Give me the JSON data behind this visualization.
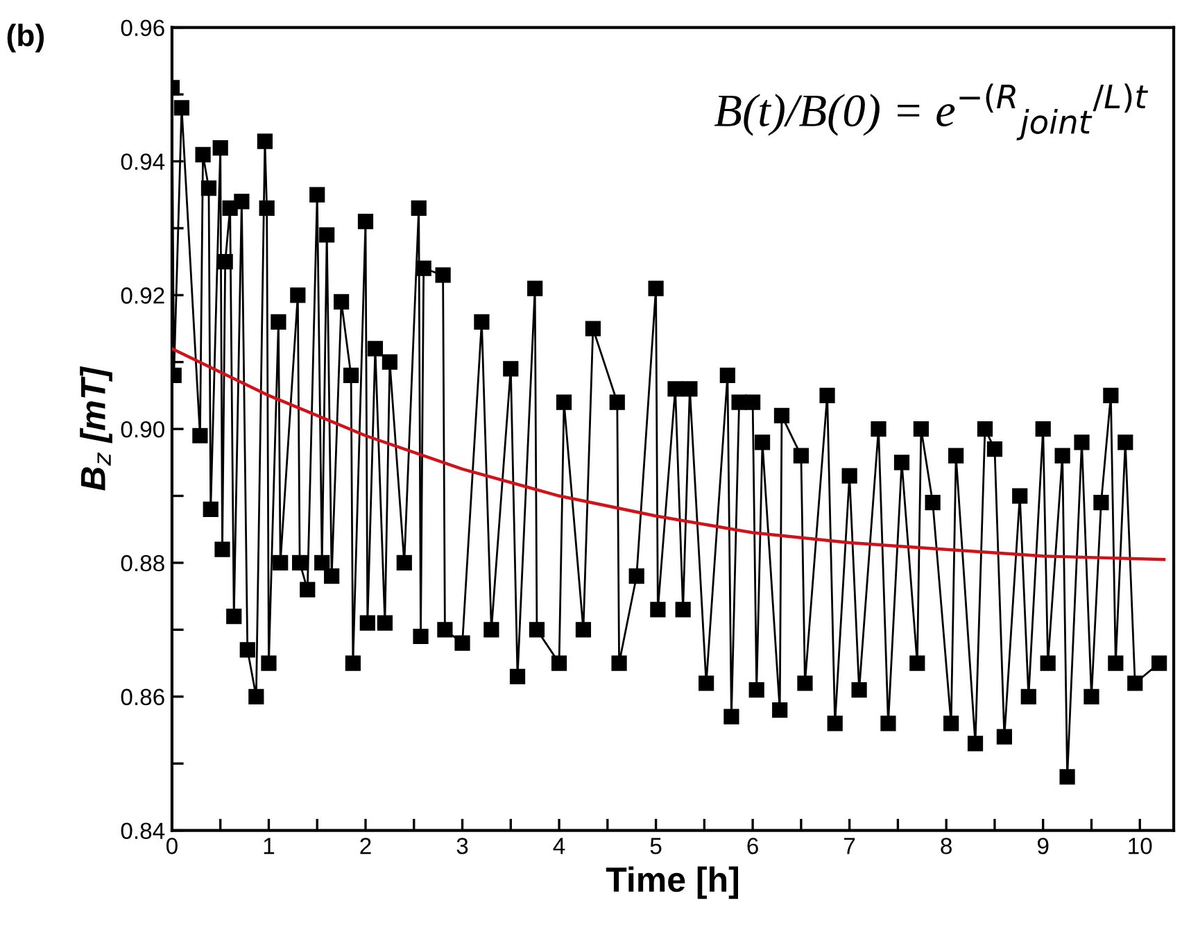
{
  "chart_data": {
    "type": "line",
    "title": "(b)",
    "xlabel": "Time [h]",
    "ylabel": "B$_{z}$ [mT]",
    "annotations": [
      "B(t)/B(0) = e$^{−(R}$$_{joint}$$^{/L)t}$"
    ],
    "xlim": [
      0,
      10.35
    ],
    "ylim": [
      0.84,
      0.96
    ],
    "xticks": [
      0,
      {
        "value": 0.5,
        "label": null
      },
      1,
      {
        "value": 1.5,
        "label": null
      },
      2,
      {
        "value": 2.5,
        "label": null
      },
      3,
      {
        "value": 3.5,
        "label": null
      },
      4,
      {
        "value": 4.5,
        "label": null
      },
      5,
      {
        "value": 5.5,
        "label": null
      },
      6,
      {
        "value": 6.5,
        "label": null
      },
      7,
      {
        "value": 7.5,
        "label": null
      },
      8,
      {
        "value": 8.5,
        "label": null
      },
      9,
      {
        "value": 9.5,
        "label": null
      },
      10
    ],
    "yticks": [
      {
        "value": 0.84,
        "label": "0.84"
      },
      {
        "value": 0.85,
        "label": null
      },
      {
        "value": 0.86,
        "label": "0.86"
      },
      {
        "value": 0.87,
        "label": null
      },
      {
        "value": 0.88,
        "label": "0.88"
      },
      {
        "value": 0.89,
        "label": null
      },
      {
        "value": 0.9,
        "label": "0.90"
      },
      {
        "value": 0.91,
        "label": null
      },
      {
        "value": 0.92,
        "label": "0.92"
      },
      {
        "value": 0.93,
        "label": null
      },
      {
        "value": 0.94,
        "label": "0.94"
      },
      {
        "value": 0.95,
        "label": null
      },
      {
        "value": 0.96,
        "label": "0.96"
      }
    ],
    "grid": false,
    "legend": false,
    "series": [
      {
        "marker": "square",
        "line_style": "solid",
        "color": "#000000",
        "x": [
          0,
          0.02,
          0.1,
          0.29,
          0.32,
          0.38,
          0.4,
          0.5,
          0.52,
          0.55,
          0.6,
          0.64,
          0.72,
          0.78,
          0.87,
          0.96,
          0.98,
          1.0,
          1.1,
          1.12,
          1.3,
          1.32,
          1.4,
          1.5,
          1.55,
          1.6,
          1.65,
          1.75,
          1.85,
          1.87,
          2.0,
          2.02,
          2.1,
          2.2,
          2.25,
          2.4,
          2.55,
          2.57,
          2.6,
          2.8,
          2.82,
          3.0,
          3.2,
          3.3,
          3.5,
          3.57,
          3.75,
          3.77,
          4.0,
          4.05,
          4.25,
          4.35,
          4.6,
          4.62,
          4.8,
          5.0,
          5.02,
          5.2,
          5.28,
          5.35,
          5.52,
          5.74,
          5.78,
          5.86,
          6.0,
          6.04,
          6.1,
          6.28,
          6.3,
          6.5,
          6.54,
          6.77,
          6.85,
          7.0,
          7.1,
          7.3,
          7.4,
          7.54,
          7.7,
          7.74,
          7.86,
          8.05,
          8.1,
          8.3,
          8.4,
          8.5,
          8.6,
          8.76,
          8.85,
          9.0,
          9.05,
          9.2,
          9.25,
          9.4,
          9.5,
          9.6,
          9.7,
          9.75,
          9.85,
          9.95,
          10.2
        ],
        "values": [
          0.951,
          0.908,
          0.948,
          0.899,
          0.941,
          0.936,
          0.888,
          0.942,
          0.882,
          0.925,
          0.933,
          0.872,
          0.934,
          0.867,
          0.86,
          0.943,
          0.933,
          0.865,
          0.916,
          0.88,
          0.92,
          0.88,
          0.876,
          0.935,
          0.88,
          0.929,
          0.878,
          0.919,
          0.908,
          0.865,
          0.931,
          0.871,
          0.912,
          0.871,
          0.91,
          0.88,
          0.933,
          0.869,
          0.924,
          0.923,
          0.87,
          0.868,
          0.916,
          0.87,
          0.909,
          0.863,
          0.921,
          0.87,
          0.865,
          0.904,
          0.87,
          0.915,
          0.904,
          0.865,
          0.878,
          0.921,
          0.873,
          0.906,
          0.873,
          0.906,
          0.862,
          0.908,
          0.857,
          0.904,
          0.904,
          0.861,
          0.898,
          0.858,
          0.902,
          0.896,
          0.862,
          0.905,
          0.856,
          0.893,
          0.861,
          0.9,
          0.856,
          0.895,
          0.865,
          0.9,
          0.889,
          0.856,
          0.896,
          0.853,
          0.9,
          0.897,
          0.854,
          0.89,
          0.86,
          0.9,
          0.865,
          0.896,
          0.848,
          0.898,
          0.86,
          0.889,
          0.905,
          0.865,
          0.898,
          0.862,
          0.865
        ]
      },
      {
        "type": "line",
        "marker": "none",
        "line_style": "solid",
        "color": "#d0121b",
        "x": [
          0,
          1,
          2,
          3,
          4,
          5,
          6,
          7,
          8,
          9,
          10.25
        ],
        "values": [
          0.912,
          0.905,
          0.899,
          0.894,
          0.89,
          0.887,
          0.8845,
          0.883,
          0.882,
          0.881,
          0.8805
        ]
      }
    ]
  }
}
